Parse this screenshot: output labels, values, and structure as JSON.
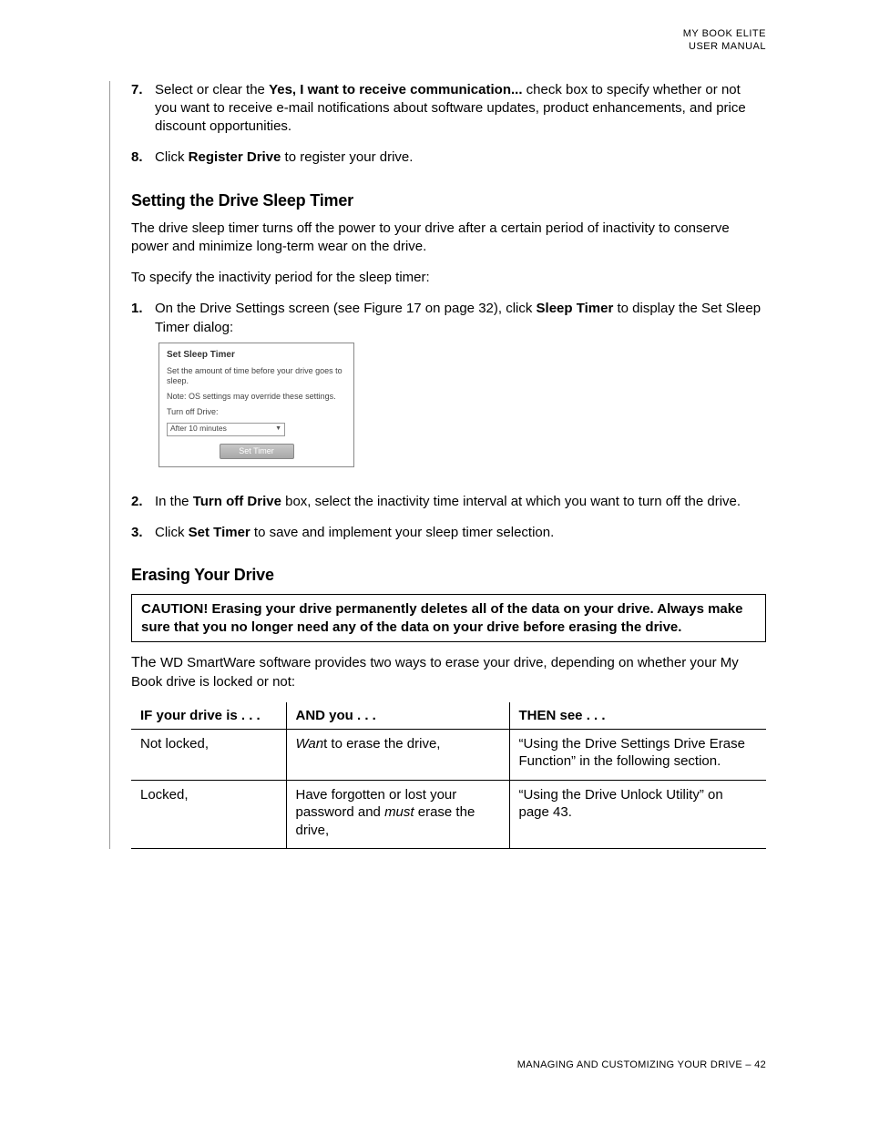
{
  "header": {
    "line1": "MY BOOK ELITE",
    "line2": "USER MANUAL"
  },
  "step7": {
    "num": "7.",
    "pre": "Select or clear the ",
    "bold": "Yes, I want to receive communication...",
    "post": " check box to specify whether or not you want to receive e-mail notifications about software updates, product enhancements, and price discount opportunities."
  },
  "step8": {
    "num": "8.",
    "pre": "Click ",
    "bold": "Register Drive",
    "post": " to register your drive."
  },
  "sleep": {
    "heading": "Setting the Drive Sleep Timer",
    "p1": "The drive sleep timer turns off the power to your drive after a certain period of inactivity to conserve power and minimize long-term wear on the drive.",
    "p2": "To specify the inactivity period for the sleep timer:",
    "s1": {
      "num": "1.",
      "pre": "On the Drive Settings screen (see Figure 17 on page 32), click ",
      "bold": "Sleep Timer",
      "post": " to display the Set Sleep Timer dialog:"
    },
    "dialog": {
      "title": "Set Sleep Timer",
      "line1": "Set the amount of time before your drive goes to sleep.",
      "line2": "Note: OS settings may override these settings.",
      "label": "Turn off Drive:",
      "value": "After 10 minutes",
      "button": "Set Timer"
    },
    "s2": {
      "num": "2.",
      "pre": "In the ",
      "bold": "Turn off Drive",
      "post": " box, select the inactivity time interval at which you want to turn off the drive."
    },
    "s3": {
      "num": "3.",
      "pre": "Click ",
      "bold": "Set Timer",
      "post": " to save and implement your sleep timer selection."
    }
  },
  "erase": {
    "heading": "Erasing Your Drive",
    "caution": "CAUTION!  Erasing your drive permanently deletes all of the data on your drive. Always make sure that you no longer need any of the data on your drive before erasing the drive.",
    "intro_the": "The ",
    "intro_rest": "WD SmartWare software provides two ways to erase your drive, depending on whether your My Book drive is locked or not:",
    "table": {
      "h1": "IF your drive is . . .",
      "h2": "AND you . . .",
      "h3": "THEN see . . .",
      "r1c1": "Not locked,",
      "r1c2_it": "Wan",
      "r1c2_rest": "t to erase the drive,",
      "r1c3": "“Using the Drive Settings Drive Erase Function” in the following section.",
      "r2c1": "Locked,",
      "r2c2_a": "Have forgotten or lost your password and ",
      "r2c2_it": "must",
      "r2c2_b": " erase the drive,",
      "r2c3": "“Using the Drive Unlock Utility” on page 43."
    }
  },
  "footer": "MANAGING AND CUSTOMIZING YOUR DRIVE – 42"
}
